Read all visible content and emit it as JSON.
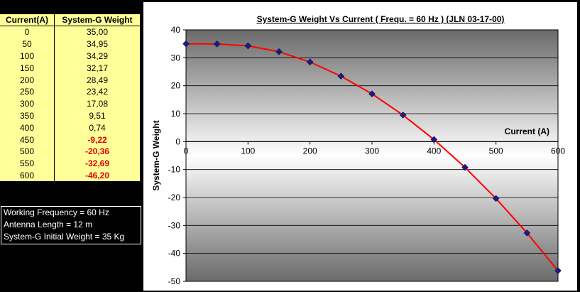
{
  "table": {
    "headers": [
      "Current(A)",
      "System-G Weight"
    ],
    "rows": [
      [
        "0",
        "35,00"
      ],
      [
        "50",
        "34,95"
      ],
      [
        "100",
        "34,29"
      ],
      [
        "150",
        "32,17"
      ],
      [
        "200",
        "28,49"
      ],
      [
        "250",
        "23,42"
      ],
      [
        "300",
        "17,08"
      ],
      [
        "350",
        "9,51"
      ],
      [
        "400",
        "0,74"
      ],
      [
        "450",
        "-9,22"
      ],
      [
        "500",
        "-20,36"
      ],
      [
        "550",
        "-32,69"
      ],
      [
        "600",
        "-46,20"
      ]
    ]
  },
  "info": {
    "lines": [
      "Working Frequency = 60 Hz",
      "Antenna Length = 12 m",
      "System-G Initial Weight = 35 Kg"
    ]
  },
  "colors": {
    "table_bg": "#ffff99",
    "negative_text": "#e00000",
    "line": "#ff0000",
    "marker": "#1a1a8c"
  },
  "chart_data": {
    "type": "line",
    "title": "System-G Weight Vs Current ( Frequ. = 60 Hz ) (JLN 03-17-00)",
    "xlabel": "Current (A)",
    "ylabel": "System-G Weight",
    "xlim": [
      0,
      600
    ],
    "ylim": [
      -50,
      40
    ],
    "xticks": [
      0,
      100,
      200,
      300,
      400,
      500,
      600
    ],
    "yticks": [
      40,
      30,
      20,
      10,
      0,
      -10,
      -20,
      -30,
      -40,
      -50
    ],
    "grid": true,
    "legend": "none",
    "series": [
      {
        "x": [
          0,
          50,
          100,
          150,
          200,
          250,
          300,
          350,
          400,
          450,
          500,
          550,
          600
        ],
        "y": [
          35.0,
          34.95,
          34.29,
          32.17,
          28.49,
          23.42,
          17.08,
          9.51,
          0.74,
          -9.22,
          -20.36,
          -32.69,
          -46.2
        ]
      }
    ]
  }
}
